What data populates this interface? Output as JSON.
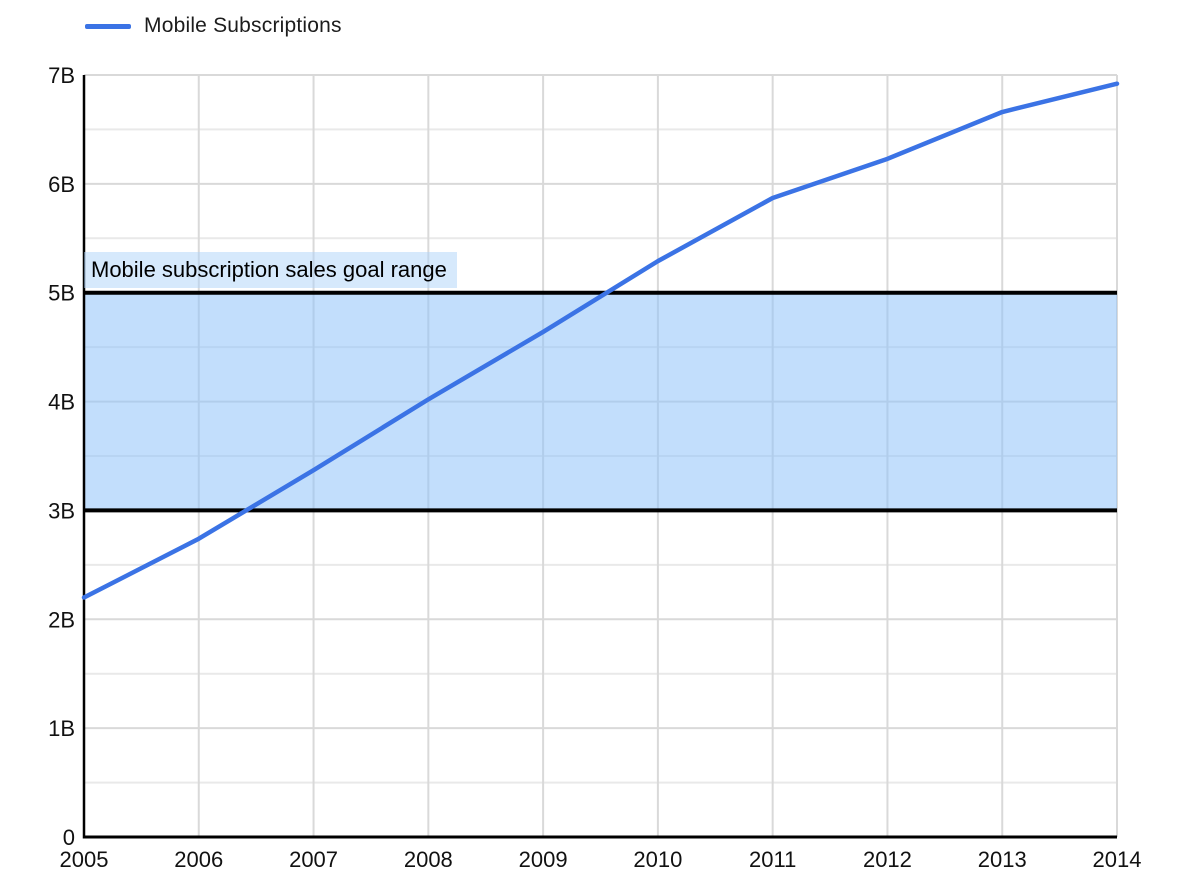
{
  "legend": {
    "label": "Mobile Subscriptions"
  },
  "colors": {
    "line": "#3b73e5",
    "band_fill": "#8fc3fa",
    "band_label_highlight": "#aed4fa",
    "band_border": "#000000",
    "axis": "#000000",
    "gridline_major": "#d9d9d9",
    "gridline_minor": "#e9e9e9",
    "label_text": "#111111",
    "background": "#ffffff"
  },
  "chart_data": {
    "type": "line",
    "title": "",
    "xlabel": "",
    "ylabel": "",
    "x": [
      2005,
      2006,
      2007,
      2008,
      2009,
      2010,
      2011,
      2012,
      2013,
      2014
    ],
    "xtick_labels": [
      "2005",
      "2006",
      "2007",
      "2008",
      "2009",
      "2010",
      "2011",
      "2012",
      "2013",
      "2014"
    ],
    "series": [
      {
        "name": "Mobile Subscriptions",
        "color": "#3b73e5",
        "values": [
          2.2,
          2.74,
          3.37,
          4.02,
          4.64,
          5.29,
          5.87,
          6.23,
          6.66,
          6.92
        ]
      }
    ],
    "ylim": [
      0,
      7
    ],
    "ytick_step": 1,
    "minor_ytick_step": 0.5,
    "ytick_labels": [
      "0",
      "1B",
      "2B",
      "3B",
      "4B",
      "5B",
      "6B",
      "7B"
    ],
    "grid": "on",
    "legend_position": "top-left",
    "band": {
      "from": 3,
      "to": 5,
      "label": "Mobile subscription sales goal range"
    }
  }
}
